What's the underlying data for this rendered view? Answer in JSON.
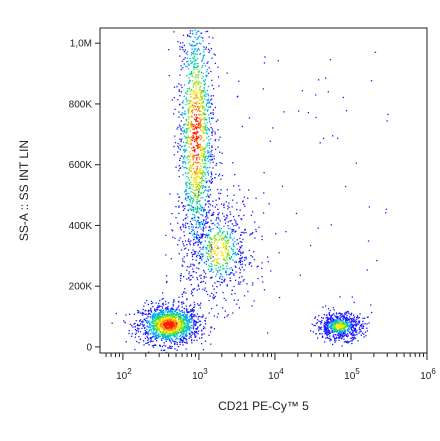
{
  "chart_data": {
    "type": "scatter",
    "subtype": "flow-cytometry-density-dot-plot",
    "title": "",
    "xlabel": "CD21 PE-Cy™ 5",
    "ylabel": "SS-A :: SS INT LIN",
    "x_scale": "log",
    "xlim": [
      50,
      1000000
    ],
    "ylim": [
      -20000,
      1050000
    ],
    "x_ticks": [
      {
        "value": 100,
        "base": "10",
        "exp": "2"
      },
      {
        "value": 1000,
        "base": "10",
        "exp": "3"
      },
      {
        "value": 10000,
        "base": "10",
        "exp": "4"
      },
      {
        "value": 100000,
        "base": "10",
        "exp": "5"
      },
      {
        "value": 1000000,
        "base": "10",
        "exp": "6"
      }
    ],
    "y_ticks": [
      {
        "value": 0,
        "label": "0"
      },
      {
        "value": 200000,
        "label": "200K"
      },
      {
        "value": 400000,
        "label": "400K"
      },
      {
        "value": 600000,
        "label": "600K"
      },
      {
        "value": 800000,
        "label": "800K"
      },
      {
        "value": 1000000,
        "label": "1,0M"
      }
    ],
    "grid": false,
    "legend": "none",
    "density_colormap": [
      "#1a1aff",
      "#00a0ff",
      "#00d0a0",
      "#80e000",
      "#ffe000",
      "#ff8000",
      "#ff1a00"
    ],
    "populations": [
      {
        "x": 400,
        "y": 75000,
        "x_spread": 0.2,
        "y_spread": 32000,
        "peak_density": "high"
      },
      {
        "x": 900,
        "y": 700000,
        "x_spread": 0.12,
        "y_spread": 220000,
        "peak_density": "high"
      },
      {
        "x": 1800,
        "y": 320000,
        "x_spread": 0.25,
        "y_spread": 90000,
        "peak_density": "medium"
      },
      {
        "x": 70000,
        "y": 70000,
        "x_spread": 0.15,
        "y_spread": 22000,
        "peak_density": "medium"
      }
    ]
  }
}
